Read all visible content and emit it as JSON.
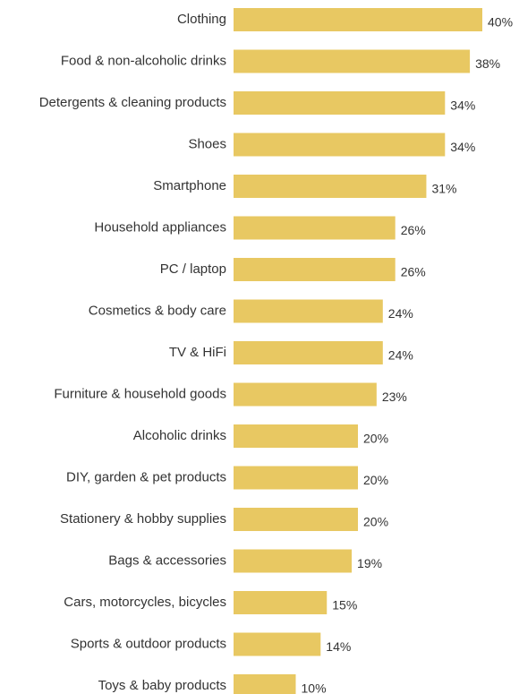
{
  "chart_data": {
    "type": "bar",
    "orientation": "horizontal",
    "categories": [
      "Clothing",
      "Food & non-alcoholic drinks",
      "Detergents & cleaning products",
      "Shoes",
      "Smartphone",
      "Household appliances",
      "PC / laptop",
      "Cosmetics & body care",
      "TV & HiFi",
      "Furniture & household goods",
      "Alcoholic drinks",
      "DIY, garden & pet products",
      "Stationery & hobby supplies",
      "Bags & accessories",
      "Cars, motorcycles, bicycles",
      "Sports & outdoor products",
      "Toys & baby products"
    ],
    "values": [
      40,
      38,
      34,
      34,
      31,
      26,
      26,
      24,
      24,
      23,
      20,
      20,
      20,
      19,
      15,
      14,
      10
    ],
    "value_labels": [
      "40%",
      "38%",
      "34%",
      "34%",
      "31%",
      "26%",
      "26%",
      "24%",
      "24%",
      "23%",
      "20%",
      "20%",
      "20%",
      "19%",
      "15%",
      "14%",
      "10%"
    ],
    "unit": "%",
    "xlim": [
      0,
      40
    ],
    "grid": false,
    "legend": "none",
    "bar_color": "#E8C862"
  }
}
